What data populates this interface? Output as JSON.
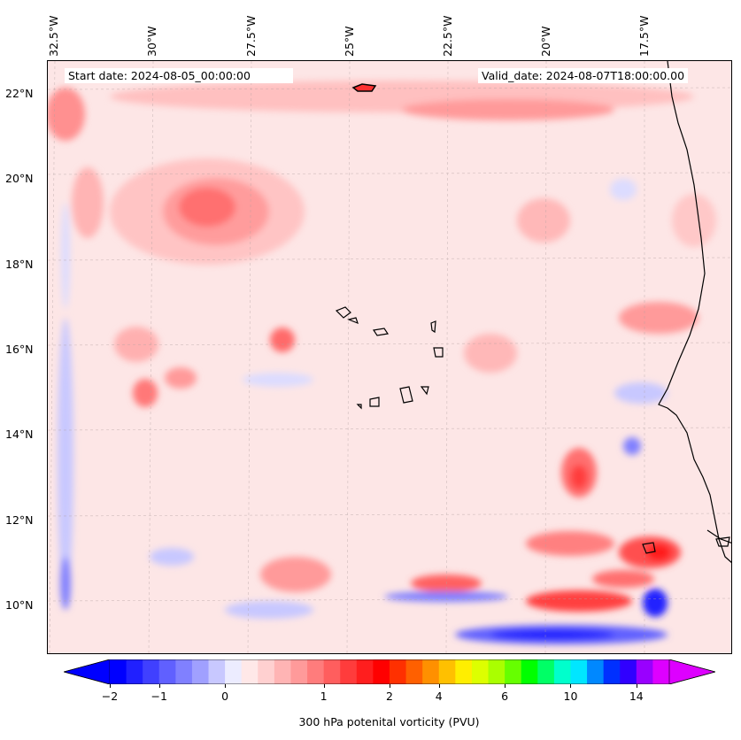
{
  "map": {
    "start_date": "Start date: 2024-08-05_00:00:00",
    "valid_date": "Valid_date: 2024-08-07T18:00:00.00",
    "lon_labels": [
      "32.5°W",
      "30°W",
      "27.5°W",
      "25°W",
      "22.5°W",
      "20°W",
      "17.5°W"
    ],
    "lat_labels": [
      "22°N",
      "20°N",
      "18°N",
      "16°N",
      "14°N",
      "12°N",
      "10°N"
    ]
  },
  "colorbar": {
    "label": "300 hPa potenital vorticity (PVU)",
    "ticks": [
      "−2",
      "−1",
      "0",
      "1",
      "2",
      "4",
      "6",
      "10",
      "14"
    ],
    "colors": [
      "#0000ff",
      "#2020ff",
      "#4040ff",
      "#6060ff",
      "#8080ff",
      "#a0a0ff",
      "#c8c8ff",
      "#ececff",
      "#ffe8e8",
      "#ffd0d0",
      "#ffb4b4",
      "#ff9a9a",
      "#ff7c7c",
      "#ff5e5e",
      "#ff3c3c",
      "#ff1e1e",
      "#ff0000",
      "#ff3000",
      "#ff6000",
      "#ff9000",
      "#ffc000",
      "#ffee00",
      "#ddff00",
      "#aaff00",
      "#66ff00",
      "#00ff00",
      "#00ff66",
      "#00ffcc",
      "#00e6ff",
      "#0088ff",
      "#0030ff",
      "#3000ff",
      "#9900ff",
      "#dd00ff"
    ]
  }
}
